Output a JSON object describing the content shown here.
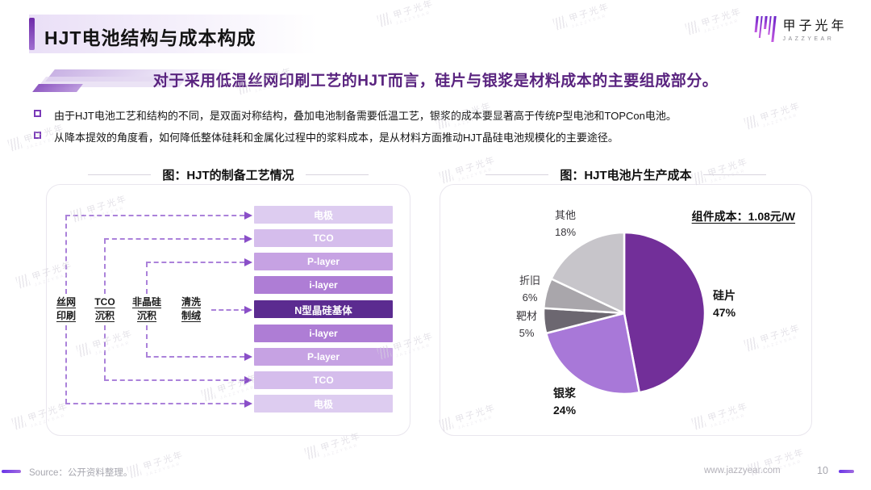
{
  "header": {
    "title": "HJT电池结构与成本构成"
  },
  "brand": {
    "logo_text": "甲子光年",
    "logo_sub": "JAZZYEAR",
    "watermark": "甲子光年",
    "watermark_sub": "JAZZYEAR",
    "accent_color": "#7a36b5"
  },
  "banner": {
    "text": "对于采用低温丝网印刷工艺的HJT而言，硅片与银浆是材料成本的主要组成部分。"
  },
  "bullets": [
    {
      "text": "由于HJT电池工艺和结构的不同，是双面对称结构，叠加电池制备需要低温工艺，银浆的成本要显著高于传统P型电池和TOPCon电池。"
    },
    {
      "text": "从降本提效的角度看，如何降低整体硅耗和金属化过程中的浆料成本，是从材料方面推动HJT晶硅电池规模化的主要途径。"
    }
  ],
  "process_chart": {
    "title": "图：HJT的制备工艺情况",
    "steps": [
      {
        "line1": "丝网",
        "line2": "印刷"
      },
      {
        "line1": "TCO",
        "line2": "沉积"
      },
      {
        "line1": "非晶硅",
        "line2": "沉积"
      },
      {
        "line1": "清洗",
        "line2": "制绒"
      }
    ],
    "layers": [
      {
        "label": "电极",
        "color": "#ddccf0"
      },
      {
        "label": "TCO",
        "color": "#d5bdec"
      },
      {
        "label": "P-layer",
        "color": "#c6a2e3"
      },
      {
        "label": "i-layer",
        "color": "#ae7dd5"
      },
      {
        "label": "N型晶硅基体",
        "color": "#5b2b90"
      },
      {
        "label": "i-layer",
        "color": "#ae7dd5"
      },
      {
        "label": "P-layer",
        "color": "#c6a2e3"
      },
      {
        "label": "TCO",
        "color": "#d5bdec"
      },
      {
        "label": "电极",
        "color": "#ddccf0"
      }
    ]
  },
  "chart_data": {
    "type": "pie",
    "title": "图：HJT电池片生产成本",
    "annotation": "组件成本：1.08元/W",
    "start_angle": "12-oclock",
    "direction": "clockwise",
    "legend_position": "outside-labels",
    "slices": [
      {
        "name": "silicon-wafer",
        "label": "硅片",
        "value": 47,
        "pct_label": "47%",
        "color": "#722f99"
      },
      {
        "name": "silver-paste",
        "label": "银浆",
        "value": 24,
        "pct_label": "24%",
        "color": "#a878d8"
      },
      {
        "name": "target-material",
        "label": "靶材",
        "value": 5,
        "pct_label": "5%",
        "color": "#6c6770"
      },
      {
        "name": "depreciation",
        "label": "折旧",
        "value": 6,
        "pct_label": "6%",
        "color": "#a9a6ab"
      },
      {
        "name": "other",
        "label": "其他",
        "value": 18,
        "pct_label": "18%",
        "color": "#c7c5ca"
      }
    ]
  },
  "footer": {
    "source": "Source：公开资料整理。",
    "website": "www.jazzyear.com",
    "page": "10"
  }
}
